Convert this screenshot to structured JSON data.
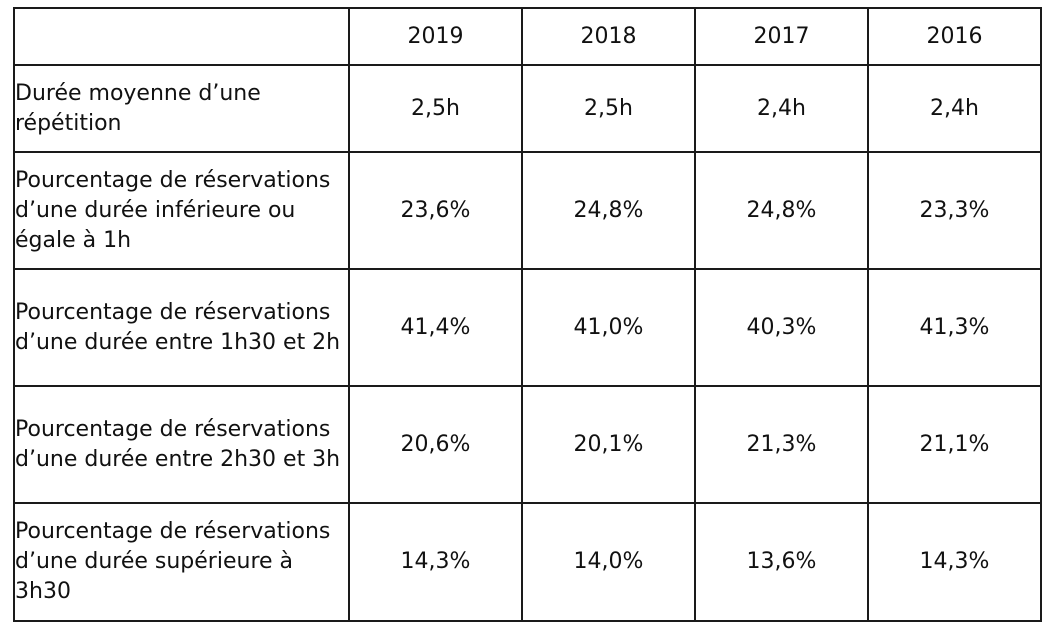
{
  "table": {
    "header": {
      "corner": "",
      "years": [
        "2019",
        "2018",
        "2017",
        "2016"
      ]
    },
    "rows": [
      {
        "label": "Durée moyenne d’une répétition",
        "values": [
          "2,5h",
          "2,5h",
          "2,4h",
          "2,4h"
        ]
      },
      {
        "label": "Pourcentage de réservations d’une durée inférieure ou égale à 1h",
        "values": [
          "23,6%",
          "24,8%",
          "24,8%",
          "23,3%"
        ]
      },
      {
        "label": "Pourcentage de réservations d’une durée entre 1h30 et 2h",
        "values": [
          "41,4%",
          "41,0%",
          "40,3%",
          "41,3%"
        ]
      },
      {
        "label": "Pourcentage de réservations d’une durée entre 2h30 et 3h",
        "values": [
          "20,6%",
          "20,1%",
          "21,3%",
          "21,1%"
        ]
      },
      {
        "label": "Pourcentage de réservations d’une durée supérieure à 3h30",
        "values": [
          "14,3%",
          "14,0%",
          "13,6%",
          "14,3%"
        ]
      }
    ]
  }
}
